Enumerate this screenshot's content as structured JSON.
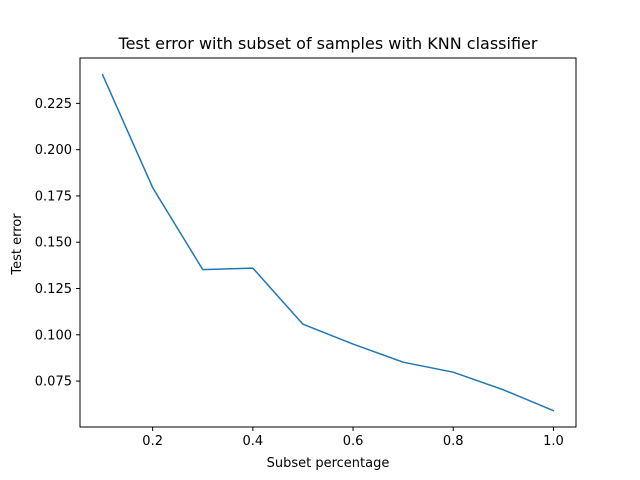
{
  "chart_data": {
    "type": "line",
    "title": "Test error with subset of samples with KNN classifier",
    "xlabel": "Subset percentage",
    "ylabel": "Test error",
    "x": [
      0.1,
      0.2,
      0.3,
      0.4,
      0.5,
      0.6,
      0.7,
      0.8,
      0.9,
      1.0
    ],
    "series": [
      {
        "values": [
          0.2405,
          0.1795,
          0.1352,
          0.136,
          0.1057,
          0.095,
          0.0852,
          0.0798,
          0.0703,
          0.059
        ],
        "color": "#1f77b4"
      }
    ],
    "xlim": [
      0.055,
      1.045
    ],
    "ylim": [
      0.0502,
      0.2495
    ],
    "xticks": [
      0.2,
      0.4,
      0.6,
      0.8,
      1.0
    ],
    "xtick_labels": [
      "0.2",
      "0.4",
      "0.6",
      "0.8",
      "1.0"
    ],
    "yticks": [
      0.075,
      0.1,
      0.125,
      0.15,
      0.175,
      0.2,
      0.225
    ],
    "ytick_labels": [
      "0.075",
      "0.100",
      "0.125",
      "0.150",
      "0.175",
      "0.200",
      "0.225"
    ],
    "grid": false,
    "legend": "none"
  }
}
